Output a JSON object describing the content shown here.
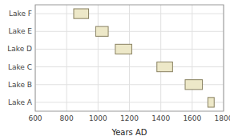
{
  "chart_data": {
    "type": "range_bar",
    "orientation": "horizontal",
    "categories": [
      "Lake A",
      "Lake B",
      "Lake C",
      "Lake D",
      "Lake E",
      "Lake F"
    ],
    "starts": [
      1700,
      1555,
      1375,
      1110,
      985,
      845
    ],
    "ends": [
      1740,
      1665,
      1475,
      1215,
      1065,
      940
    ],
    "color": "#ede8c8",
    "xlim": [
      600,
      1800
    ],
    "xticks": [
      600,
      800,
      1000,
      1200,
      1400,
      1600,
      1800
    ],
    "xlabel": "Years AD",
    "grid": true
  }
}
